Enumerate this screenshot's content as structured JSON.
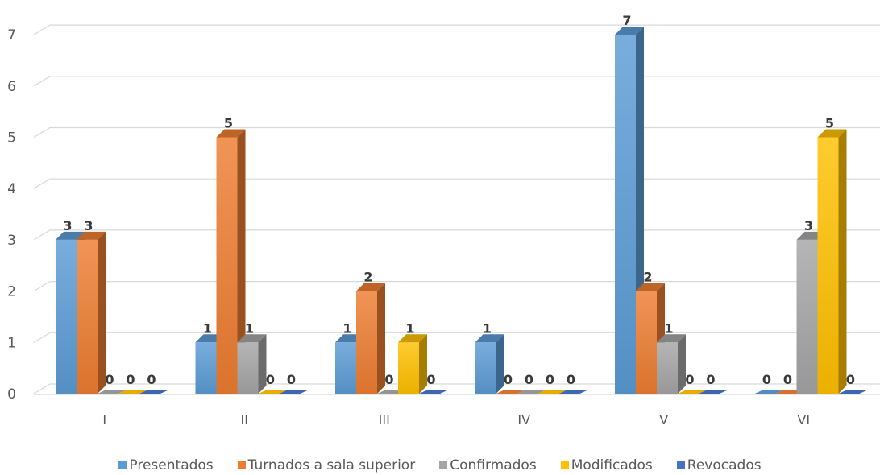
{
  "chart_data": {
    "type": "bar",
    "style": "3d-clustered-column",
    "categories": [
      "I",
      "II",
      "III",
      "IV",
      "V",
      "VI"
    ],
    "series": [
      {
        "name": "Presentados",
        "color": "#5B9BD5",
        "values": [
          3,
          1,
          1,
          1,
          7,
          0
        ]
      },
      {
        "name": "Turnados a sala superior",
        "color": "#ED7D31",
        "values": [
          3,
          5,
          2,
          0,
          2,
          0
        ]
      },
      {
        "name": "Confirmados",
        "color": "#A5A5A5",
        "values": [
          0,
          1,
          0,
          0,
          1,
          3
        ]
      },
      {
        "name": "Modificados",
        "color": "#FFC000",
        "values": [
          0,
          0,
          1,
          0,
          0,
          5
        ]
      },
      {
        "name": "Revocados",
        "color": "#4472C4",
        "values": [
          0,
          0,
          0,
          0,
          0,
          0
        ]
      }
    ],
    "yticks": [
      0,
      1,
      2,
      3,
      4,
      5,
      6,
      7
    ],
    "ylim": [
      0,
      7
    ],
    "grid": true,
    "legend_position": "bottom",
    "data_labels": true
  }
}
